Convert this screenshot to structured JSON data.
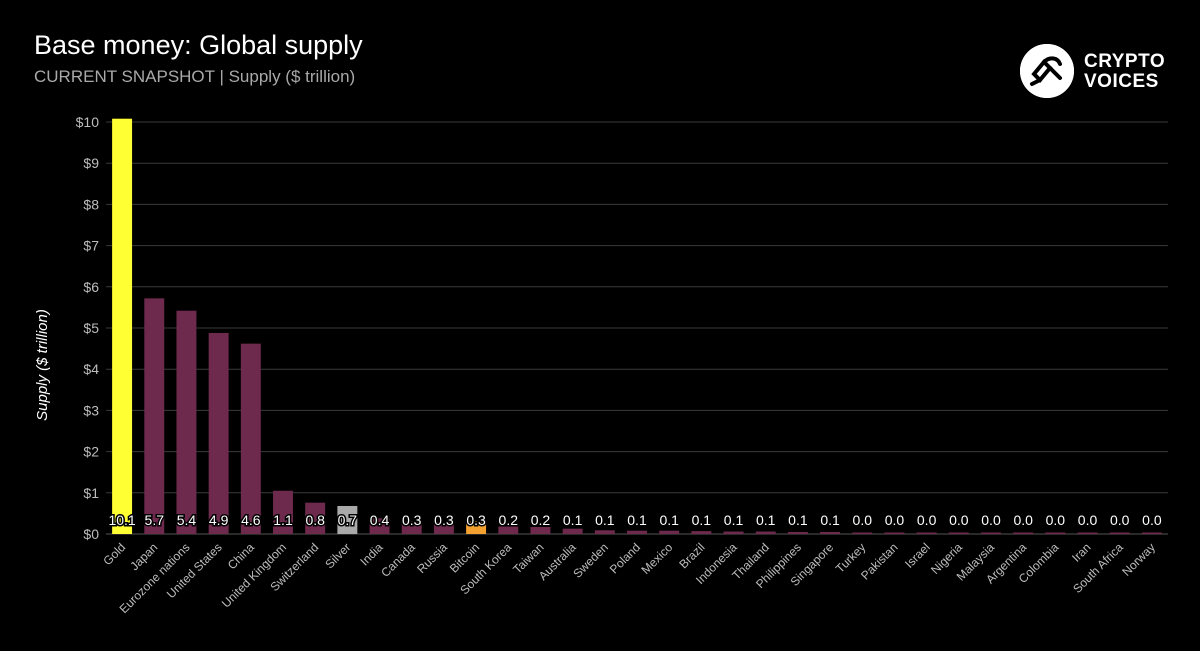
{
  "brand": {
    "line1": "CRYPTO",
    "line2": "VOICES"
  },
  "chart_data": {
    "type": "bar",
    "title": "Base money: Global supply",
    "subtitle": "CURRENT SNAPSHOT | Supply ($ trillion)",
    "xlabel": "",
    "ylabel": "Supply ($ trillion)",
    "ylim": [
      0,
      10
    ],
    "yticks": [
      "$0",
      "$1",
      "$2",
      "$3",
      "$4",
      "$5",
      "$6",
      "$7",
      "$8",
      "$9",
      "$10"
    ],
    "grid": true,
    "categories": [
      "Gold",
      "Japan",
      "Eurozone nations",
      "United States",
      "China",
      "United Kingdom",
      "Switzerland",
      "Silver",
      "India",
      "Canada",
      "Russia",
      "Bitcoin",
      "South Korea",
      "Taiwan",
      "Australia",
      "Sweden",
      "Poland",
      "Mexico",
      "Brazil",
      "Indonesia",
      "Thailand",
      "Philippines",
      "Singapore",
      "Turkey",
      "Pakistan",
      "Israel",
      "Nigeria",
      "Malaysia",
      "Argentina",
      "Colombia",
      "Iran",
      "South Africa",
      "Norway"
    ],
    "values": [
      10.1,
      5.7,
      5.4,
      4.9,
      4.6,
      1.1,
      0.8,
      0.7,
      0.4,
      0.3,
      0.3,
      0.3,
      0.2,
      0.2,
      0.1,
      0.1,
      0.1,
      0.1,
      0.1,
      0.1,
      0.1,
      0.1,
      0.1,
      0.0,
      0.0,
      0.0,
      0.0,
      0.0,
      0.0,
      0.0,
      0.0,
      0.0,
      0.0
    ],
    "bar_values": [
      10.08,
      5.72,
      5.42,
      4.88,
      4.62,
      1.05,
      0.76,
      0.68,
      0.38,
      0.3,
      0.29,
      0.3,
      0.18,
      0.17,
      0.13,
      0.09,
      0.08,
      0.08,
      0.07,
      0.06,
      0.06,
      0.05,
      0.05,
      0.03,
      0.03,
      0.02,
      0.02,
      0.02,
      0.02,
      0.02,
      0.02,
      0.02,
      0.02
    ],
    "data_labels": [
      "10.1",
      "5.7",
      "5.4",
      "4.9",
      "4.6",
      "1.1",
      "0.8",
      "0.7",
      "0.4",
      "0.3",
      "0.3",
      "0.3",
      "0.2",
      "0.2",
      "0.1",
      "0.1",
      "0.1",
      "0.1",
      "0.1",
      "0.1",
      "0.1",
      "0.1",
      "0.1",
      "0.0",
      "0.0",
      "0.0",
      "0.0",
      "0.0",
      "0.0",
      "0.0",
      "0.0",
      "0.0",
      "0.0"
    ],
    "colors": {
      "default": "#6d2a4d",
      "Gold": "#ffff33",
      "Silver": "#a9a9a9",
      "Bitcoin": "#f2a030",
      "grid": "#3a3a3a",
      "tick_text": "#bdbdbd",
      "label_text": "#ffffff",
      "label_outline": "#000000"
    }
  }
}
